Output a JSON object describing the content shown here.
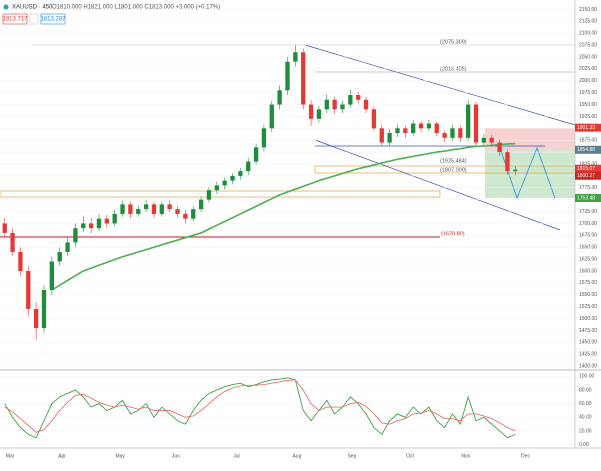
{
  "header": {
    "symbol": "XAUUSD · 450",
    "ohlc": "O1810.000 H1821.000 L1801.000 C1813.000 +3.000 (+0.17%)",
    "sell": "1813.717",
    "buy": "1813.287"
  },
  "annotations": [
    "(2075.309)",
    "(2016.405)",
    "(1925.484)",
    "(1807.000)",
    "(1670.80)"
  ],
  "chart_data": [
    {
      "type": "candlestick",
      "up_color": "#1e8e3e",
      "down_color": "#e53935",
      "open": [
        1700,
        1680,
        1640,
        1600,
        1520,
        1480,
        1560,
        1620,
        1640,
        1660,
        1690,
        1700,
        1690,
        1710,
        1700,
        1720,
        1740,
        1720,
        1730,
        1740,
        1720,
        1740,
        1730,
        1720,
        1710,
        1730,
        1750,
        1770,
        1780,
        1790,
        1800,
        1810,
        1830,
        1860,
        1900,
        1950,
        1980,
        2040,
        2060,
        1950,
        1920,
        1940,
        1960,
        1940,
        1950,
        1970,
        1960,
        1940,
        1900,
        1870,
        1890,
        1900,
        1890,
        1910,
        1900,
        1910,
        1890,
        1880,
        1900,
        1880,
        1950,
        1870,
        1880,
        1870,
        1850,
        1810
      ],
      "high": [
        1712,
        1690,
        1650,
        1610,
        1535,
        1570,
        1630,
        1650,
        1670,
        1700,
        1715,
        1712,
        1720,
        1718,
        1728,
        1748,
        1746,
        1738,
        1750,
        1746,
        1746,
        1748,
        1736,
        1728,
        1736,
        1756,
        1776,
        1788,
        1796,
        1806,
        1816,
        1838,
        1868,
        1908,
        1958,
        1990,
        2050,
        2075,
        2068,
        1960,
        1948,
        1972,
        1966,
        1958,
        1980,
        1976,
        1966,
        1946,
        1908,
        1898,
        1908,
        1906,
        1918,
        1916,
        1918,
        1914,
        1896,
        1908,
        1906,
        1960,
        1956,
        1888,
        1886,
        1876,
        1856,
        1821
      ],
      "low": [
        1672,
        1632,
        1590,
        1505,
        1455,
        1470,
        1550,
        1612,
        1632,
        1650,
        1682,
        1680,
        1684,
        1692,
        1694,
        1714,
        1712,
        1714,
        1724,
        1712,
        1714,
        1724,
        1712,
        1700,
        1704,
        1724,
        1744,
        1762,
        1772,
        1782,
        1792,
        1802,
        1824,
        1852,
        1892,
        1940,
        1970,
        2030,
        1940,
        1905,
        1912,
        1932,
        1930,
        1932,
        1944,
        1952,
        1932,
        1894,
        1862,
        1864,
        1882,
        1880,
        1884,
        1892,
        1894,
        1884,
        1872,
        1874,
        1872,
        1874,
        1862,
        1864,
        1862,
        1842,
        1802,
        1801
      ],
      "close": [
        1680,
        1640,
        1600,
        1520,
        1480,
        1560,
        1620,
        1640,
        1660,
        1690,
        1700,
        1690,
        1710,
        1700,
        1720,
        1740,
        1720,
        1730,
        1740,
        1720,
        1740,
        1730,
        1720,
        1710,
        1730,
        1750,
        1770,
        1780,
        1790,
        1800,
        1810,
        1830,
        1860,
        1900,
        1950,
        1980,
        2040,
        2060,
        1950,
        1920,
        1940,
        1960,
        1940,
        1950,
        1970,
        1960,
        1940,
        1900,
        1870,
        1890,
        1900,
        1890,
        1910,
        1900,
        1910,
        1890,
        1880,
        1900,
        1880,
        1950,
        1870,
        1880,
        1870,
        1850,
        1810,
        1813
      ],
      "series": [
        {
          "color": "#4caf50",
          "values": [
            null,
            null,
            null,
            null,
            null,
            null,
            1560,
            1570,
            1580,
            1590,
            1600,
            1606,
            1612,
            1618,
            1624,
            1630,
            1635,
            1640,
            1645,
            1650,
            1655,
            1660,
            1665,
            1670,
            1675,
            1680,
            1688,
            1696,
            1704,
            1712,
            1720,
            1728,
            1736,
            1744,
            1752,
            1760,
            1766,
            1772,
            1778,
            1784,
            1790,
            1795,
            1800,
            1805,
            1810,
            1815,
            1819,
            1823,
            1827,
            1831,
            1835,
            1838,
            1841,
            1844,
            1847,
            1850,
            1852,
            1855,
            1857,
            1860,
            1862,
            1863,
            1864,
            1866,
            1867,
            1868
          ]
        }
      ],
      "xlim": [
        -0.6,
        72.6
      ],
      "xticks": [
        {
          "value": 0.7,
          "label": "Mar"
        },
        {
          "value": 7.3,
          "label": "Apr"
        },
        {
          "value": 14.7,
          "label": "May"
        },
        {
          "value": 21.8,
          "label": "Jun"
        },
        {
          "value": 29.5,
          "label": "Jul"
        },
        {
          "value": 37.2,
          "label": "Aug"
        },
        {
          "value": 44.2,
          "label": "Sep"
        },
        {
          "value": 51.6,
          "label": "Oct"
        },
        {
          "value": 58.7,
          "label": "Nov"
        },
        {
          "value": 66.3,
          "label": "Dec"
        }
      ],
      "ylim": [
        1396,
        2153
      ],
      "yticks": [
        {
          "value": 1400,
          "label": "1400.00"
        },
        {
          "value": 1425,
          "label": "1425.00"
        },
        {
          "value": 1450,
          "label": "1450.00"
        },
        {
          "value": 1475,
          "label": "1475.00"
        },
        {
          "value": 1500,
          "label": "1500.00"
        },
        {
          "value": 1525,
          "label": "1525.00"
        },
        {
          "value": 1550,
          "label": "1550.00"
        },
        {
          "value": 1575,
          "label": "1575.00"
        },
        {
          "value": 1600,
          "label": "1600.00"
        },
        {
          "value": 1625,
          "label": "1625.00"
        },
        {
          "value": 1650,
          "label": "1650.00"
        },
        {
          "value": 1675,
          "label": "1675.00"
        },
        {
          "value": 1700,
          "label": "1700.00"
        },
        {
          "value": 1725,
          "label": "1725.00"
        },
        {
          "value": 1750,
          "label": "1750.00"
        },
        {
          "value": 1775,
          "label": "1775.00"
        },
        {
          "value": 1800,
          "label": "1800.00"
        },
        {
          "value": 1825,
          "label": "1825.00"
        },
        {
          "value": 1850,
          "label": "1850.00"
        },
        {
          "value": 1875,
          "label": "1875.00"
        },
        {
          "value": 1900,
          "label": "1900.00"
        },
        {
          "value": 1925,
          "label": "1925.00"
        },
        {
          "value": 1950,
          "label": "1950.00"
        },
        {
          "value": 1975,
          "label": "1975.00"
        },
        {
          "value": 2000,
          "label": "2000.00"
        },
        {
          "value": 2025,
          "label": "2025.00"
        },
        {
          "value": 2050,
          "label": "2050.00"
        },
        {
          "value": 2075,
          "label": "2075.00"
        },
        {
          "value": 2100,
          "label": "2100.00"
        },
        {
          "value": 2125,
          "label": "2125.00"
        },
        {
          "value": 2150,
          "label": "2150.00"
        }
      ],
      "price_labels": [
        {
          "value": 1901.33,
          "color": "#e53935"
        },
        {
          "value": 1854.88,
          "color": "#607d8b"
        },
        {
          "value": 1815.07,
          "color": "#e53935"
        },
        {
          "value": 1800.27,
          "color": "#c62828"
        },
        {
          "value": 1753.48,
          "color": "#43a047"
        }
      ]
    },
    {
      "type": "line",
      "series": [
        {
          "color": "#43a047",
          "values": [
            60,
            40,
            25,
            15,
            10,
            35,
            60,
            70,
            75,
            80,
            70,
            55,
            60,
            50,
            55,
            65,
            45,
            50,
            60,
            40,
            55,
            45,
            35,
            30,
            50,
            65,
            75,
            80,
            85,
            88,
            90,
            85,
            88,
            92,
            95,
            96,
            98,
            95,
            50,
            35,
            50,
            65,
            45,
            55,
            70,
            60,
            45,
            25,
            15,
            35,
            45,
            40,
            55,
            45,
            55,
            35,
            25,
            45,
            30,
            70,
            35,
            40,
            30,
            20,
            10,
            15
          ]
        },
        {
          "color": "#e57373",
          "values": [
            55,
            48,
            38,
            28,
            18,
            22,
            35,
            50,
            62,
            72,
            74,
            68,
            62,
            58,
            55,
            58,
            55,
            52,
            55,
            50,
            50,
            50,
            45,
            40,
            42,
            50,
            60,
            70,
            78,
            83,
            86,
            87,
            87,
            88,
            90,
            92,
            94,
            95,
            80,
            60,
            50,
            55,
            55,
            55,
            60,
            62,
            56,
            45,
            32,
            30,
            35,
            38,
            45,
            46,
            50,
            45,
            38,
            38,
            35,
            45,
            45,
            42,
            38,
            32,
            25,
            20
          ]
        }
      ],
      "xlim": [
        -0.6,
        72.6
      ],
      "ylim": [
        -5,
        105
      ],
      "yticks": [
        {
          "value": 0,
          "label": "0.00"
        },
        {
          "value": 20,
          "label": "20.00"
        },
        {
          "value": 40,
          "label": "40.00"
        },
        {
          "value": 60,
          "label": "60.00"
        },
        {
          "value": 80,
          "label": "80.00"
        },
        {
          "value": 100,
          "label": "100.00"
        }
      ]
    }
  ]
}
